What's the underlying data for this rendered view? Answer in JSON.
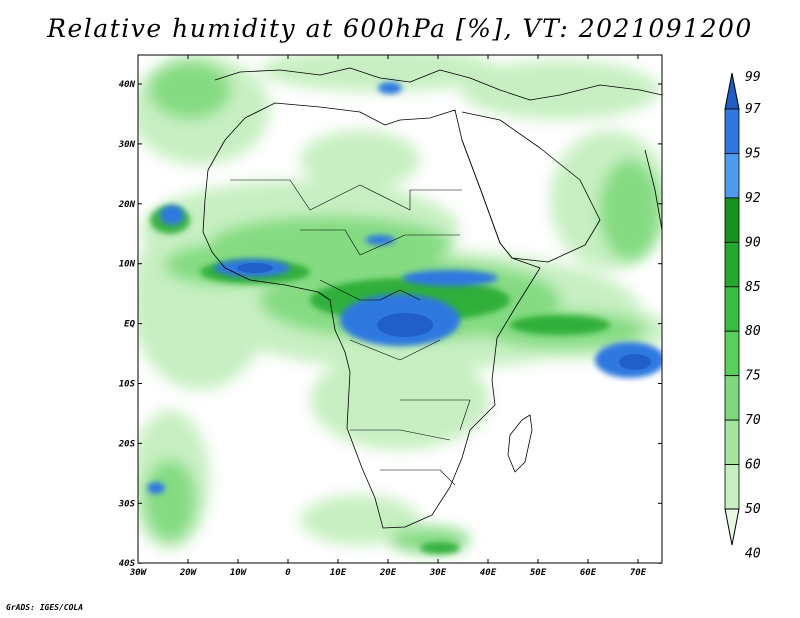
{
  "title": "Relative humidity at 600hPa [%], VT: 2021091200",
  "footer": "GrADS: IGES/COLA",
  "map": {
    "lat_labels": [
      "40N",
      "30N",
      "20N",
      "10N",
      "EQ",
      "10S",
      "20S",
      "30S",
      "40S"
    ],
    "lon_labels": [
      "30W",
      "20W",
      "10W",
      "0",
      "10E",
      "20E",
      "30E",
      "40E",
      "50E",
      "60E",
      "70E"
    ]
  },
  "colorbar": {
    "labels": [
      "99",
      "97",
      "95",
      "92",
      "90",
      "85",
      "80",
      "75",
      "70",
      "60",
      "50",
      "40"
    ],
    "colors": [
      "#1f5cc8",
      "#2e78e0",
      "#4d9cf0",
      "#14931e",
      "#23a82e",
      "#38bc42",
      "#58d05c",
      "#7ed97c",
      "#a3e59e",
      "#c5efbf",
      "#e6f8e2"
    ]
  }
}
